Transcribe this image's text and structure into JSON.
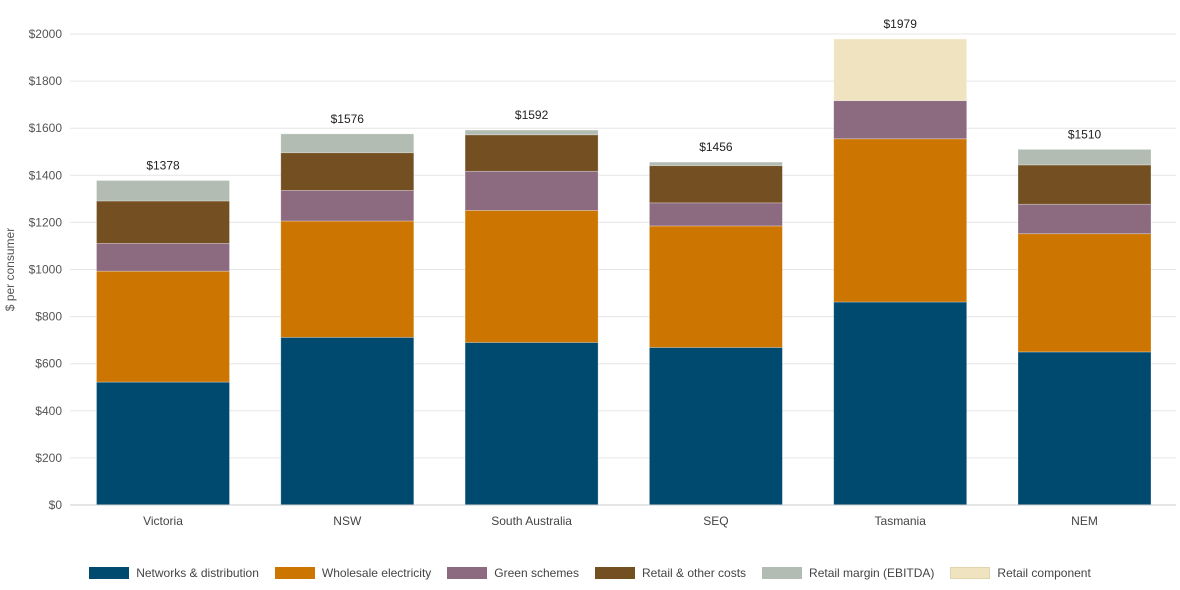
{
  "chart_data": {
    "type": "bar",
    "stacked": true,
    "title": "",
    "xlabel": "",
    "ylabel": "$ per consumer",
    "ylim": [
      0,
      2000
    ],
    "yticks": [
      0,
      200,
      400,
      600,
      800,
      1000,
      1200,
      1400,
      1600,
      1800,
      2000
    ],
    "ytick_labels": [
      "$0",
      "$200",
      "$400",
      "$600",
      "$800",
      "$1000",
      "$1200",
      "$1400",
      "$1600",
      "$1800",
      "$2000"
    ],
    "grid": true,
    "legend_position": "bottom",
    "categories": [
      "Victoria",
      "NSW",
      "South Australia",
      "SEQ",
      "Tasmania",
      "NEM"
    ],
    "totals": [
      "$1378",
      "$1576",
      "$1592",
      "$1456",
      "$1979",
      "$1510"
    ],
    "series": [
      {
        "name": "Networks & distribution",
        "color": "#004a70",
        "values": [
          522,
          712,
          690,
          669,
          862,
          650
        ]
      },
      {
        "name": "Wholesale electricity",
        "color": "#cc7500",
        "values": [
          471,
          494,
          561,
          516,
          693,
          502
        ]
      },
      {
        "name": "Green schemes",
        "color": "#8c6a80",
        "values": [
          118,
          130,
          166,
          98,
          162,
          125
        ]
      },
      {
        "name": "Retail & other costs",
        "color": "#734f22",
        "values": [
          180,
          160,
          155,
          158,
          0,
          167
        ]
      },
      {
        "name": "Retail margin (EBITDA)",
        "color": "#b2bcb2",
        "values": [
          87,
          80,
          20,
          15,
          0,
          66
        ]
      },
      {
        "name": "Retail component",
        "color": "#f0e4c0",
        "values": [
          0,
          0,
          0,
          0,
          262,
          0
        ]
      }
    ]
  }
}
